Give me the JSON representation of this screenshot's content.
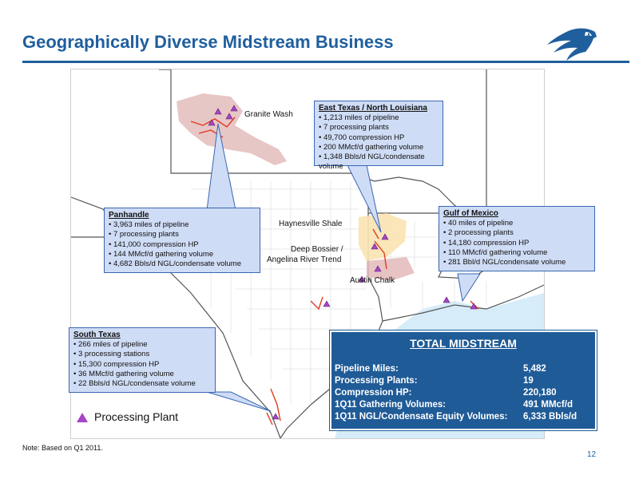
{
  "header": {
    "title": "Geographically Diverse Midstream Business"
  },
  "map_labels": {
    "granite_wash": "Granite Wash",
    "haynesville": "Haynesville Shale",
    "deep_bossier": "Deep Bossier /",
    "angelina": "Angelina River Trend",
    "austin_chalk": "Austin Chalk"
  },
  "callouts": {
    "east_texas": {
      "title": "East Texas / North Louisiana",
      "items": [
        "1,213 miles of pipeline",
        "7 processing plants",
        "49,700 compression HP",
        "200 MMcf/d gathering volume",
        "1,348 Bbls/d NGL/condensate volume"
      ]
    },
    "panhandle": {
      "title": "Panhandle",
      "items": [
        "3,963 miles of pipeline",
        "7 processing plants",
        "141,000 compression HP",
        "144 MMcf/d gathering volume",
        "4,682 Bbls/d NGL/condensate volume"
      ]
    },
    "gulf": {
      "title": "Gulf of Mexico",
      "items": [
        "40 miles of pipeline",
        "2 processing plants",
        "14,180 compression HP",
        "110 MMcf/d gathering volume",
        "281 Bbl/d NGL/condensate volume"
      ]
    },
    "south_texas": {
      "title": "South Texas",
      "items": [
        "266 miles of pipeline",
        "3 processing stations",
        "15,300 compression HP",
        "36 MMcf/d gathering volume",
        "22 Bbls/d NGL/condensate volume"
      ]
    }
  },
  "total": {
    "title": "TOTAL MIDSTREAM",
    "rows": [
      {
        "label": "Pipeline Miles:",
        "value": "5,482"
      },
      {
        "label": "Processing Plants:",
        "value": "19"
      },
      {
        "label": "Compression HP:",
        "value": "220,180"
      },
      {
        "label": "1Q11 Gathering Volumes:",
        "value": "491 MMcf/d"
      },
      {
        "label": "1Q11 NGL/Condensate Equity Volumes:",
        "value": "6,333 Bbls/d"
      }
    ]
  },
  "legend": {
    "label": "Processing Plant"
  },
  "footnote": "Note: Based on Q1 2011.",
  "page_number": "12",
  "colors": {
    "brand_blue": "#1f5f9e",
    "callout_fill": "#cfdcf5",
    "plant_marker": "#a645c7",
    "total_fill": "#1f5b97"
  }
}
